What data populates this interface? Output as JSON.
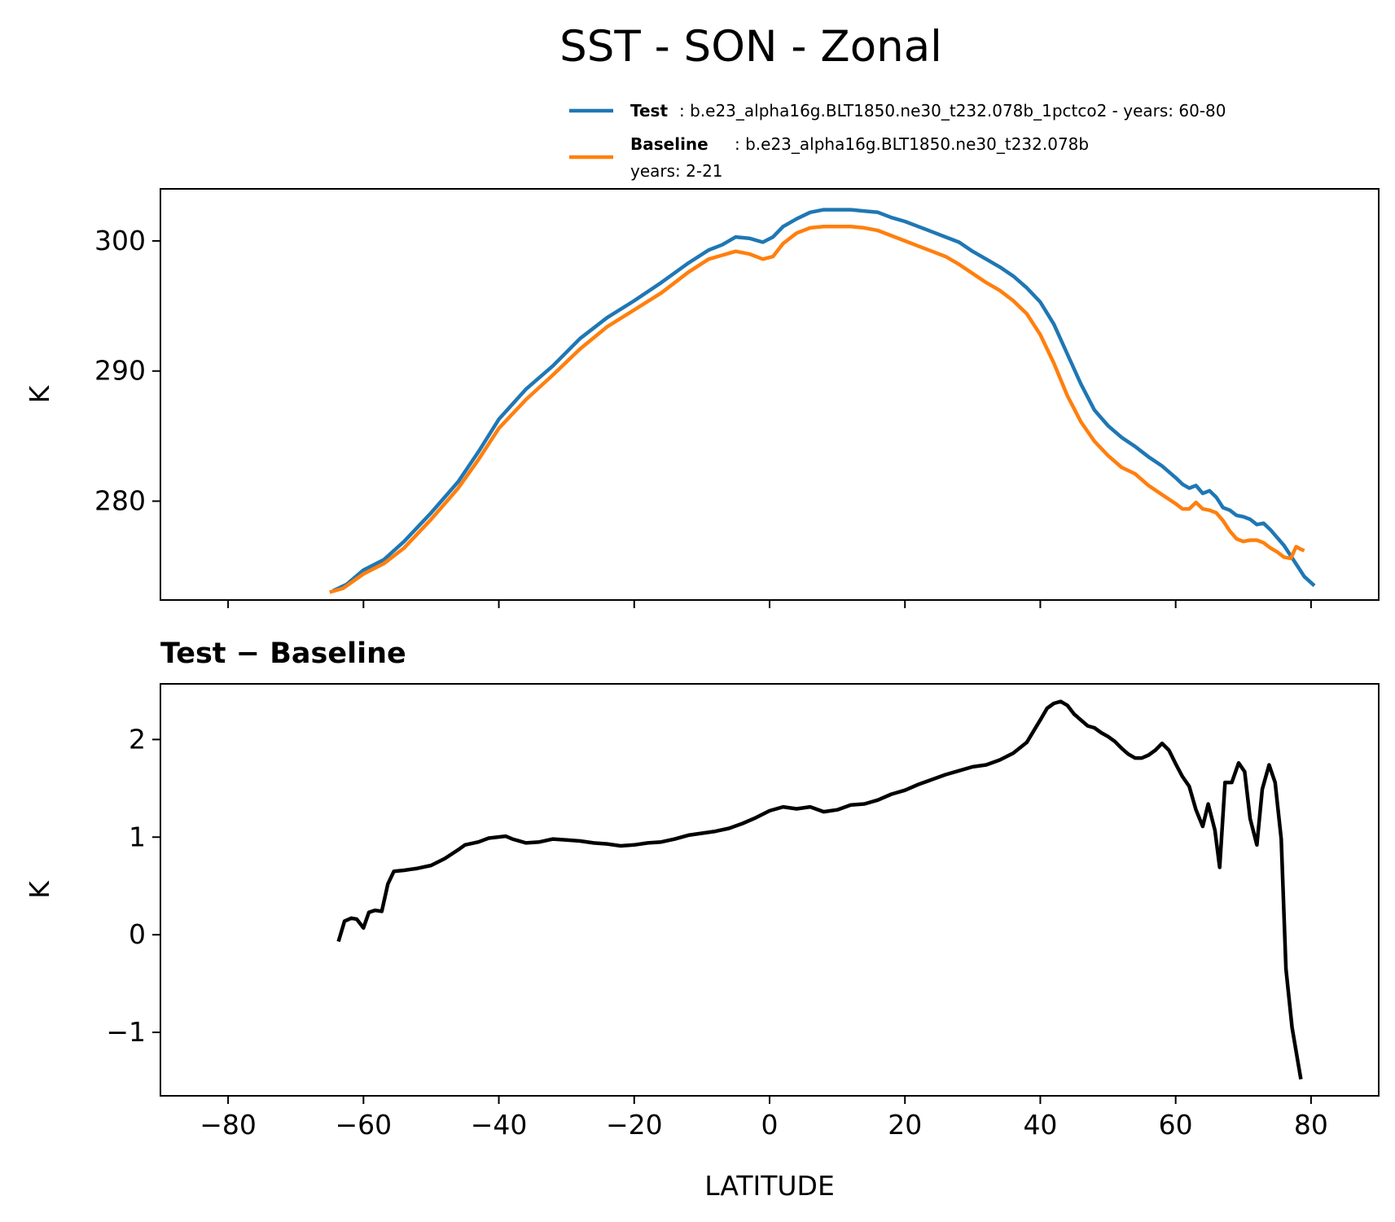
{
  "chart_data": {
    "type": "line",
    "title": "SST - SON - Zonal",
    "legend": {
      "placement": "top-right",
      "entries": [
        {
          "name": "Test",
          "text": ": b.e23_alpha16g.BLT1850.ne30_t232.078b_1pctco2 - years: 60-80",
          "text2": "",
          "color": "#1f77b4"
        },
        {
          "name": "Baseline",
          "text": ": b.e23_alpha16g.BLT1850.ne30_t232.078b",
          "text2": "years: 2-21",
          "color": "#ff7f0e"
        }
      ]
    },
    "xlabel": "LATITUDE",
    "xlim": [
      -90,
      90
    ],
    "xticks": [
      -80,
      -60,
      -40,
      -20,
      0,
      20,
      40,
      60,
      80
    ],
    "xtick_labels": [
      "−80",
      "−60",
      "−40",
      "−20",
      "0",
      "20",
      "40",
      "60",
      "80"
    ],
    "top_panel": {
      "ylabel": "K",
      "ylim": [
        272.4,
        304
      ],
      "yticks": [
        280,
        290,
        300
      ],
      "ytick_labels": [
        "280",
        "290",
        "300"
      ],
      "grid": false,
      "series": [
        {
          "name": "Test",
          "color": "#1f77b4",
          "points": [
            [
              -64.5,
              273.1
            ],
            [
              -62.5,
              273.6
            ],
            [
              -60,
              274.7
            ],
            [
              -57,
              275.5
            ],
            [
              -54,
              276.9
            ],
            [
              -50,
              279.1
            ],
            [
              -46,
              281.5
            ],
            [
              -43,
              283.8
            ],
            [
              -40,
              286.3
            ],
            [
              -36,
              288.6
            ],
            [
              -32,
              290.4
            ],
            [
              -28,
              292.5
            ],
            [
              -24,
              294.1
            ],
            [
              -20,
              295.4
            ],
            [
              -16,
              296.8
            ],
            [
              -12,
              298.3
            ],
            [
              -9,
              299.3
            ],
            [
              -7,
              299.7
            ],
            [
              -5,
              300.3
            ],
            [
              -3,
              300.2
            ],
            [
              -1,
              299.9
            ],
            [
              0.5,
              300.3
            ],
            [
              2,
              301.1
            ],
            [
              4,
              301.7
            ],
            [
              6,
              302.2
            ],
            [
              8,
              302.4
            ],
            [
              10,
              302.4
            ],
            [
              12,
              302.4
            ],
            [
              14,
              302.3
            ],
            [
              16,
              302.2
            ],
            [
              18,
              301.8
            ],
            [
              20,
              301.5
            ],
            [
              22,
              301.1
            ],
            [
              24,
              300.7
            ],
            [
              26,
              300.3
            ],
            [
              28,
              299.9
            ],
            [
              30,
              299.2
            ],
            [
              32,
              298.6
            ],
            [
              34,
              298.0
            ],
            [
              36,
              297.3
            ],
            [
              38,
              296.4
            ],
            [
              40,
              295.3
            ],
            [
              42,
              293.6
            ],
            [
              44,
              291.3
            ],
            [
              46,
              289.0
            ],
            [
              48,
              287.0
            ],
            [
              50,
              285.8
            ],
            [
              52,
              284.9
            ],
            [
              54,
              284.2
            ],
            [
              56,
              283.4
            ],
            [
              58,
              282.7
            ],
            [
              60,
              281.8
            ],
            [
              61,
              281.3
            ],
            [
              62,
              281.0
            ],
            [
              63,
              281.2
            ],
            [
              64,
              280.6
            ],
            [
              65,
              280.8
            ],
            [
              66,
              280.3
            ],
            [
              67,
              279.5
            ],
            [
              68,
              279.3
            ],
            [
              69,
              278.9
            ],
            [
              70,
              278.8
            ],
            [
              71,
              278.6
            ],
            [
              72,
              278.2
            ],
            [
              73,
              278.3
            ],
            [
              74,
              277.8
            ],
            [
              75,
              277.2
            ],
            [
              76,
              276.6
            ],
            [
              77,
              275.8
            ],
            [
              78,
              275.0
            ],
            [
              79,
              274.2
            ],
            [
              80.5,
              273.5
            ]
          ]
        },
        {
          "name": "Baseline",
          "color": "#ff7f0e",
          "points": [
            [
              -65,
              273.0
            ],
            [
              -63,
              273.3
            ],
            [
              -60,
              274.4
            ],
            [
              -57,
              275.2
            ],
            [
              -54,
              276.4
            ],
            [
              -50,
              278.6
            ],
            [
              -46,
              281.0
            ],
            [
              -43,
              283.2
            ],
            [
              -40,
              285.6
            ],
            [
              -36,
              287.8
            ],
            [
              -32,
              289.7
            ],
            [
              -28,
              291.7
            ],
            [
              -24,
              293.4
            ],
            [
              -20,
              294.7
            ],
            [
              -16,
              296.0
            ],
            [
              -12,
              297.6
            ],
            [
              -9,
              298.6
            ],
            [
              -7,
              298.9
            ],
            [
              -5,
              299.2
            ],
            [
              -3,
              299.0
            ],
            [
              -1,
              298.6
            ],
            [
              0.5,
              298.8
            ],
            [
              2,
              299.8
            ],
            [
              4,
              300.6
            ],
            [
              6,
              301.0
            ],
            [
              8,
              301.1
            ],
            [
              10,
              301.1
            ],
            [
              12,
              301.1
            ],
            [
              14,
              301.0
            ],
            [
              16,
              300.8
            ],
            [
              18,
              300.4
            ],
            [
              20,
              300.0
            ],
            [
              22,
              299.6
            ],
            [
              24,
              299.2
            ],
            [
              26,
              298.8
            ],
            [
              28,
              298.2
            ],
            [
              30,
              297.5
            ],
            [
              32,
              296.8
            ],
            [
              34,
              296.2
            ],
            [
              36,
              295.4
            ],
            [
              38,
              294.4
            ],
            [
              40,
              292.8
            ],
            [
              42,
              290.6
            ],
            [
              44,
              288.1
            ],
            [
              46,
              286.1
            ],
            [
              48,
              284.6
            ],
            [
              50,
              283.5
            ],
            [
              52,
              282.6
            ],
            [
              54,
              282.1
            ],
            [
              56,
              281.2
            ],
            [
              58,
              280.5
            ],
            [
              60,
              279.8
            ],
            [
              61,
              279.4
            ],
            [
              62,
              279.4
            ],
            [
              63,
              279.9
            ],
            [
              64,
              279.4
            ],
            [
              65,
              279.3
            ],
            [
              66,
              279.1
            ],
            [
              67,
              278.5
            ],
            [
              68,
              277.7
            ],
            [
              69,
              277.1
            ],
            [
              70,
              276.9
            ],
            [
              71,
              277.0
            ],
            [
              72,
              277.0
            ],
            [
              73,
              276.8
            ],
            [
              74,
              276.4
            ],
            [
              75,
              276.1
            ],
            [
              76,
              275.7
            ],
            [
              77,
              275.6
            ],
            [
              77.8,
              276.5
            ],
            [
              78.5,
              276.3
            ],
            [
              79,
              276.2
            ]
          ]
        }
      ]
    },
    "bottom_panel": {
      "title": "Test − Baseline",
      "ylabel": "K",
      "ylim": [
        -1.65,
        2.57
      ],
      "yticks": [
        -1,
        0,
        1,
        2
      ],
      "ytick_labels": [
        "−1",
        "0",
        "1",
        "2"
      ],
      "grid": false,
      "series": [
        {
          "name": "",
          "color": "#000000",
          "points": [
            [
              -63.7,
              -0.07
            ],
            [
              -62.8,
              0.14
            ],
            [
              -61.8,
              0.17
            ],
            [
              -61,
              0.16
            ],
            [
              -60,
              0.07
            ],
            [
              -59.2,
              0.23
            ],
            [
              -58.3,
              0.25
            ],
            [
              -57.3,
              0.24
            ],
            [
              -56.4,
              0.52
            ],
            [
              -55.5,
              0.65
            ],
            [
              -54,
              0.66
            ],
            [
              -52,
              0.68
            ],
            [
              -50,
              0.71
            ],
            [
              -48,
              0.78
            ],
            [
              -46,
              0.87
            ],
            [
              -45,
              0.92
            ],
            [
              -43,
              0.95
            ],
            [
              -41.5,
              0.99
            ],
            [
              -39,
              1.01
            ],
            [
              -38,
              0.98
            ],
            [
              -36,
              0.94
            ],
            [
              -34,
              0.95
            ],
            [
              -32,
              0.98
            ],
            [
              -30,
              0.97
            ],
            [
              -28,
              0.96
            ],
            [
              -26,
              0.94
            ],
            [
              -24,
              0.93
            ],
            [
              -22,
              0.91
            ],
            [
              -20,
              0.92
            ],
            [
              -18,
              0.94
            ],
            [
              -16,
              0.95
            ],
            [
              -14,
              0.98
            ],
            [
              -12,
              1.02
            ],
            [
              -10,
              1.04
            ],
            [
              -8,
              1.06
            ],
            [
              -6,
              1.09
            ],
            [
              -4,
              1.14
            ],
            [
              -2,
              1.2
            ],
            [
              0,
              1.27
            ],
            [
              2,
              1.31
            ],
            [
              4,
              1.29
            ],
            [
              6,
              1.31
            ],
            [
              8,
              1.26
            ],
            [
              10,
              1.28
            ],
            [
              12,
              1.33
            ],
            [
              14,
              1.34
            ],
            [
              16,
              1.38
            ],
            [
              18,
              1.44
            ],
            [
              20,
              1.48
            ],
            [
              22,
              1.54
            ],
            [
              24,
              1.59
            ],
            [
              26,
              1.64
            ],
            [
              28,
              1.68
            ],
            [
              30,
              1.72
            ],
            [
              32,
              1.74
            ],
            [
              34,
              1.79
            ],
            [
              36,
              1.86
            ],
            [
              38,
              1.97
            ],
            [
              40,
              2.2
            ],
            [
              41,
              2.32
            ],
            [
              42,
              2.37
            ],
            [
              43,
              2.39
            ],
            [
              44,
              2.35
            ],
            [
              45,
              2.26
            ],
            [
              47,
              2.14
            ],
            [
              48,
              2.12
            ],
            [
              49,
              2.07
            ],
            [
              50,
              2.03
            ],
            [
              51,
              1.98
            ],
            [
              52,
              1.91
            ],
            [
              53,
              1.85
            ],
            [
              54,
              1.81
            ],
            [
              55,
              1.81
            ],
            [
              56,
              1.84
            ],
            [
              57,
              1.89
            ],
            [
              58,
              1.96
            ],
            [
              59,
              1.89
            ],
            [
              60,
              1.75
            ],
            [
              61,
              1.62
            ],
            [
              62,
              1.52
            ],
            [
              63,
              1.28
            ],
            [
              64,
              1.11
            ],
            [
              64.8,
              1.34
            ],
            [
              65.8,
              1.07
            ],
            [
              66.5,
              0.69
            ],
            [
              67.3,
              1.56
            ],
            [
              68.3,
              1.56
            ],
            [
              69.3,
              1.76
            ],
            [
              70.2,
              1.67
            ],
            [
              71,
              1.19
            ],
            [
              72,
              0.92
            ],
            [
              72.8,
              1.49
            ],
            [
              73.8,
              1.74
            ],
            [
              74.7,
              1.56
            ],
            [
              75.6,
              0.98
            ],
            [
              76.3,
              -0.35
            ],
            [
              77.2,
              -0.95
            ],
            [
              78.5,
              -1.48
            ]
          ]
        }
      ]
    }
  }
}
